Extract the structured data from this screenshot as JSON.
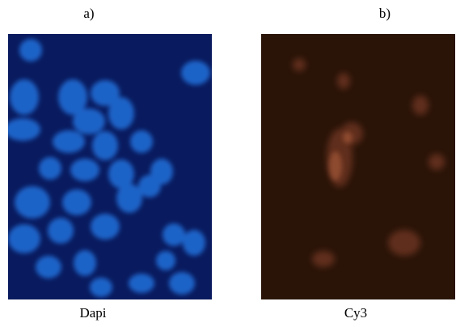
{
  "panels": [
    {
      "label": "a)",
      "caption": "Dapi"
    },
    {
      "label": "b)",
      "caption": "Cy3"
    }
  ]
}
